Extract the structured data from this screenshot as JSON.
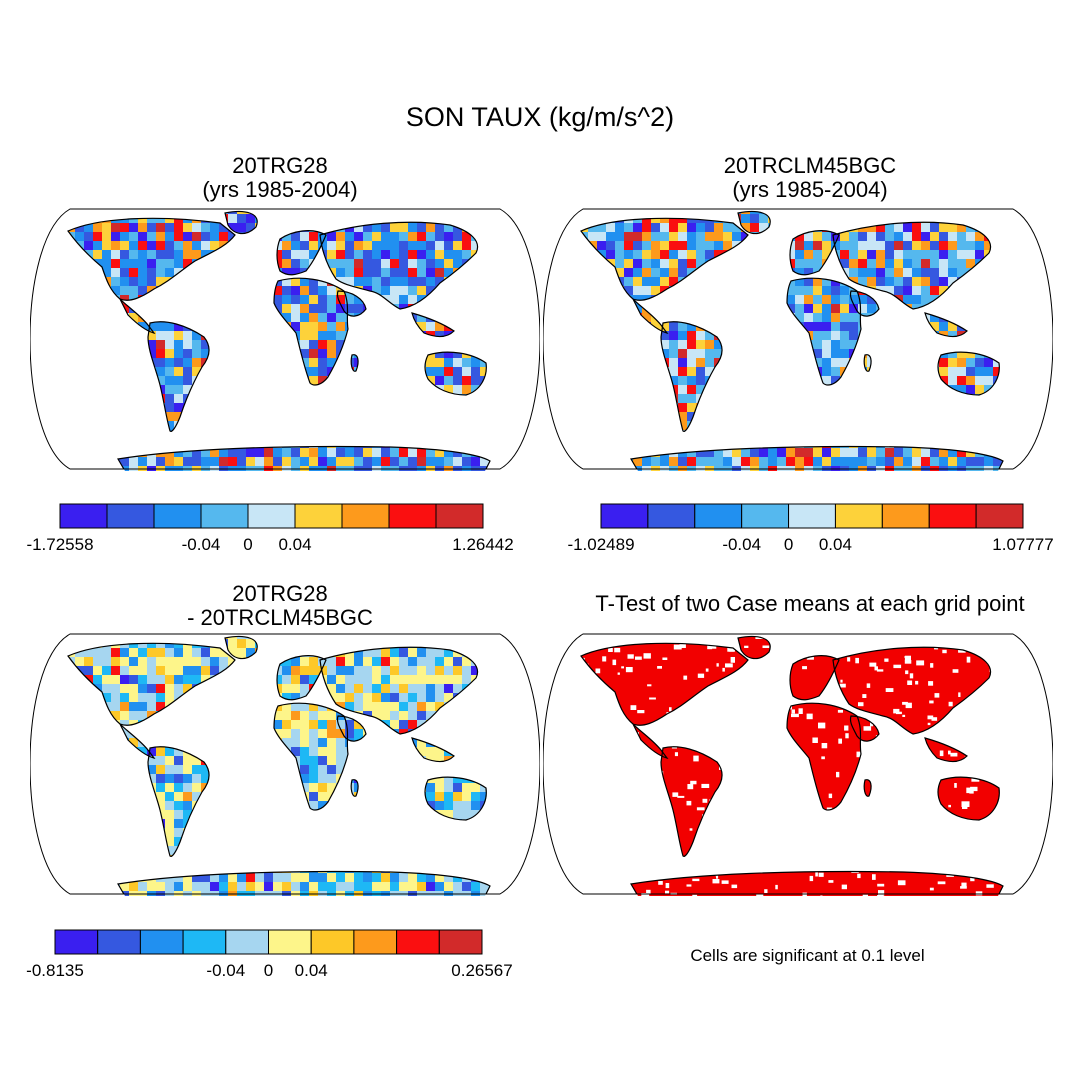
{
  "title": "SON TAUX (kg/m/s^2)",
  "panels": [
    {
      "id": "p1",
      "title_line1": "20TRG28",
      "title_line2": "(yrs 1985-2004)"
    },
    {
      "id": "p2",
      "title_line1": "20TRCLM45BGC",
      "title_line2": "(yrs 1985-2004)"
    },
    {
      "id": "p3",
      "title_line1": "20TRG28",
      "title_line2": "- 20TRCLM45BGC"
    },
    {
      "id": "p4",
      "title_line1": "T-Test of two Case means at each grid point"
    }
  ],
  "colorbars": [
    {
      "id": "cb1",
      "colors": [
        "#3a1ff0",
        "#3558e0",
        "#2190f0",
        "#55b8ee",
        "#c8e6f6",
        "#fdd23a",
        "#fd9a1c",
        "#fa0f10",
        "#d22a2a"
      ],
      "labels": [
        "-1.72558",
        "-0.04",
        "0",
        "0.04",
        "1.26442"
      ]
    },
    {
      "id": "cb2",
      "colors": [
        "#3a1ff0",
        "#3558e0",
        "#2190f0",
        "#55b8ee",
        "#c8e6f6",
        "#fdd23a",
        "#fd9a1c",
        "#fa0f10",
        "#d22a2a"
      ],
      "labels": [
        "-1.02489",
        "-0.04",
        "0",
        "0.04",
        "1.07777"
      ]
    },
    {
      "id": "cb3",
      "colors": [
        "#3a1ff0",
        "#3558e0",
        "#2190f0",
        "#1eb8f5",
        "#a6d6f0",
        "#fdf58a",
        "#fdc828",
        "#fd9a1c",
        "#fa0f10",
        "#d22a2a"
      ],
      "labels": [
        "-0.8135",
        "-0.04",
        "0",
        "0.04",
        "0.26567"
      ]
    }
  ],
  "note": "Cells are significant at 0.1 level",
  "colors": {
    "sig_red": "#f20000",
    "coast": "#000000"
  }
}
